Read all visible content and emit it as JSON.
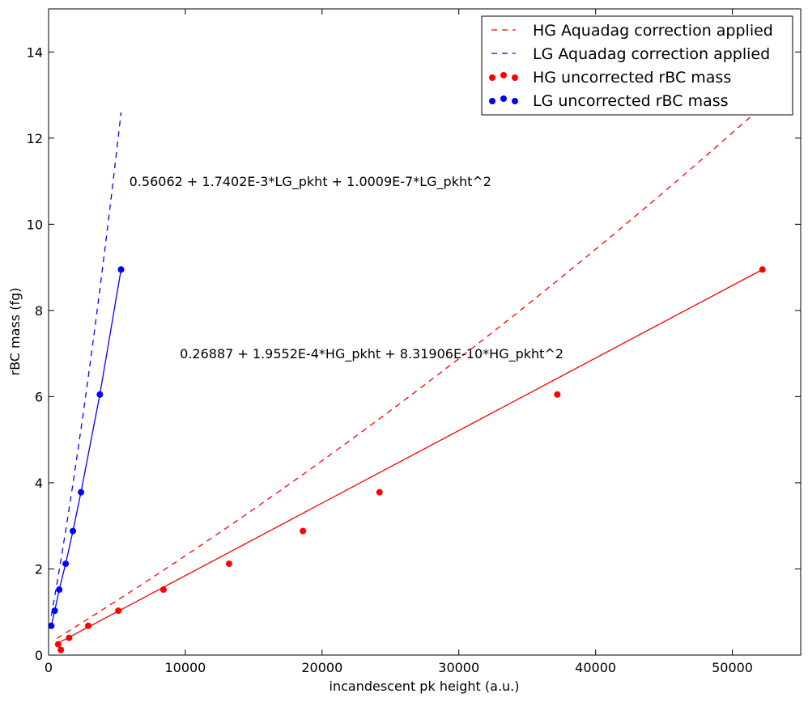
{
  "chart_data": {
    "type": "scatter",
    "title": "",
    "xlabel": "incandescent pk height (a.u.)",
    "ylabel": "rBC mass (fg)",
    "xlim": [
      0,
      55000
    ],
    "ylim": [
      0,
      15
    ],
    "x_ticks": [
      0,
      10000,
      20000,
      30000,
      40000,
      50000
    ],
    "y_ticks": [
      0,
      2,
      4,
      6,
      8,
      10,
      12,
      14
    ],
    "grid": false,
    "legend_position": "top-right",
    "series": [
      {
        "name": "HG Aquadag correction applied",
        "kind": "dashed-line",
        "color": "#ff0000",
        "fit": {
          "c0": 0.26887,
          "c1": 0.00019552,
          "c2": 8.31906e-10
        },
        "x_range": [
          600,
          52600
        ]
      },
      {
        "name": "LG Aquadag correction applied",
        "kind": "dashed-line",
        "color": "#0000ff",
        "fit": {
          "c0": 0.56062,
          "c1": 0.0017402,
          "c2": 1.0009e-07
        },
        "x_range": [
          200,
          5300
        ]
      },
      {
        "name": "HG uncorrected rBC mass",
        "kind": "points-with-line",
        "color": "#ff0000",
        "x": [
          700,
          900,
          1500,
          2900,
          5100,
          8400,
          13200,
          18600,
          24200,
          37200,
          52200
        ],
        "y": [
          0.25,
          0.12,
          0.4,
          0.68,
          1.03,
          1.52,
          2.12,
          2.88,
          3.78,
          6.05,
          8.95
        ],
        "line_x": [
          700,
          52200
        ],
        "line_y": [
          0.28,
          8.95
        ]
      },
      {
        "name": "LG uncorrected rBC mass",
        "kind": "points-with-line",
        "color": "#0000ff",
        "x": [
          200,
          450,
          780,
          1250,
          1780,
          2370,
          3750,
          5300
        ],
        "y": [
          0.68,
          1.03,
          1.52,
          2.12,
          2.88,
          3.78,
          6.05,
          8.95
        ],
        "line_x": [
          200,
          450,
          780,
          1250,
          1780,
          2370,
          3750,
          5300
        ],
        "line_y": [
          0.68,
          1.03,
          1.52,
          2.12,
          2.88,
          3.78,
          6.05,
          8.95
        ]
      }
    ],
    "annotations": [
      {
        "text": "0.56062 + 1.7402E-3*LG_pkht + 1.0009E-7*LG_pkht^2",
        "x": 5900,
        "y": 11.0
      },
      {
        "text": "0.26887 + 1.9552E-4*HG_pkht + 8.31906E-10*HG_pkht^2",
        "x": 9600,
        "y": 7.0
      }
    ]
  }
}
